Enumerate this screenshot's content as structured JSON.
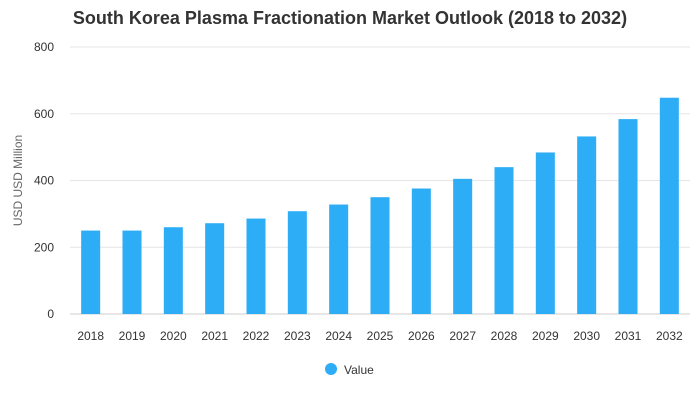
{
  "chart_data": {
    "type": "bar",
    "title": "South Korea Plasma Fractionation Market Outlook (2018 to 2032)",
    "xlabel": "",
    "ylabel": "USD USD Million",
    "categories": [
      "2018",
      "2019",
      "2020",
      "2021",
      "2022",
      "2023",
      "2024",
      "2025",
      "2026",
      "2027",
      "2028",
      "2029",
      "2030",
      "2031",
      "2032"
    ],
    "series": [
      {
        "name": "Value",
        "color": "#2eadf7",
        "values": [
          250,
          250,
          260,
          272,
          286,
          308,
          328,
          350,
          376,
          405,
          440,
          484,
          532,
          584,
          648
        ]
      }
    ],
    "ylim": [
      0,
      800
    ],
    "yticks": [
      0,
      200,
      400,
      600,
      800
    ],
    "grid": true,
    "legend_position": "bottom-center"
  }
}
